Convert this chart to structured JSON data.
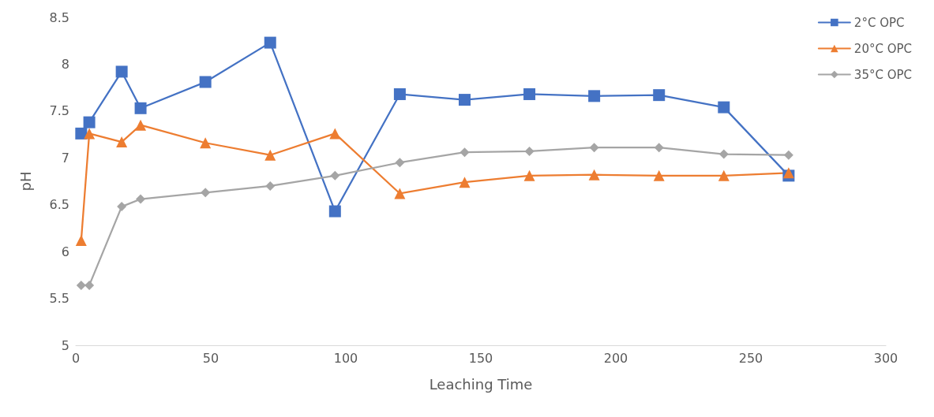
{
  "chart_data": {
    "type": "line",
    "xlabel": "Leaching Time",
    "ylabel": "pH",
    "xlim": [
      0,
      300
    ],
    "xticks": [
      0,
      50,
      100,
      150,
      200,
      250,
      300
    ],
    "ylim": [
      5,
      8.5
    ],
    "yticks": [
      5,
      5.5,
      6,
      6.5,
      7,
      7.5,
      8,
      8.5
    ],
    "grid": false,
    "legend": "top right",
    "line_style": "solid",
    "x": [
      2,
      5,
      17,
      24,
      48,
      72,
      96,
      120,
      144,
      168,
      192,
      216,
      240,
      264
    ],
    "series": [
      {
        "name": "2°C OPC",
        "color": "#4472c4",
        "marker": "square",
        "values": [
          7.26,
          7.38,
          7.92,
          7.53,
          7.81,
          8.23,
          6.43,
          7.68,
          7.62,
          7.68,
          7.66,
          7.67,
          7.54,
          6.81
        ]
      },
      {
        "name": "20°C OPC",
        "color": "#ed7d31",
        "marker": "triangle",
        "values": [
          6.12,
          7.26,
          7.17,
          7.35,
          7.16,
          7.03,
          7.26,
          6.62,
          6.74,
          6.81,
          6.82,
          6.81,
          6.81,
          6.84
        ]
      },
      {
        "name": "35°C OPC",
        "color": "#a5a5a5",
        "marker": "diamond",
        "values": [
          5.64,
          5.64,
          6.48,
          6.56,
          6.63,
          6.7,
          6.81,
          6.95,
          7.06,
          7.07,
          7.11,
          7.11,
          7.04,
          7.03
        ]
      }
    ]
  }
}
